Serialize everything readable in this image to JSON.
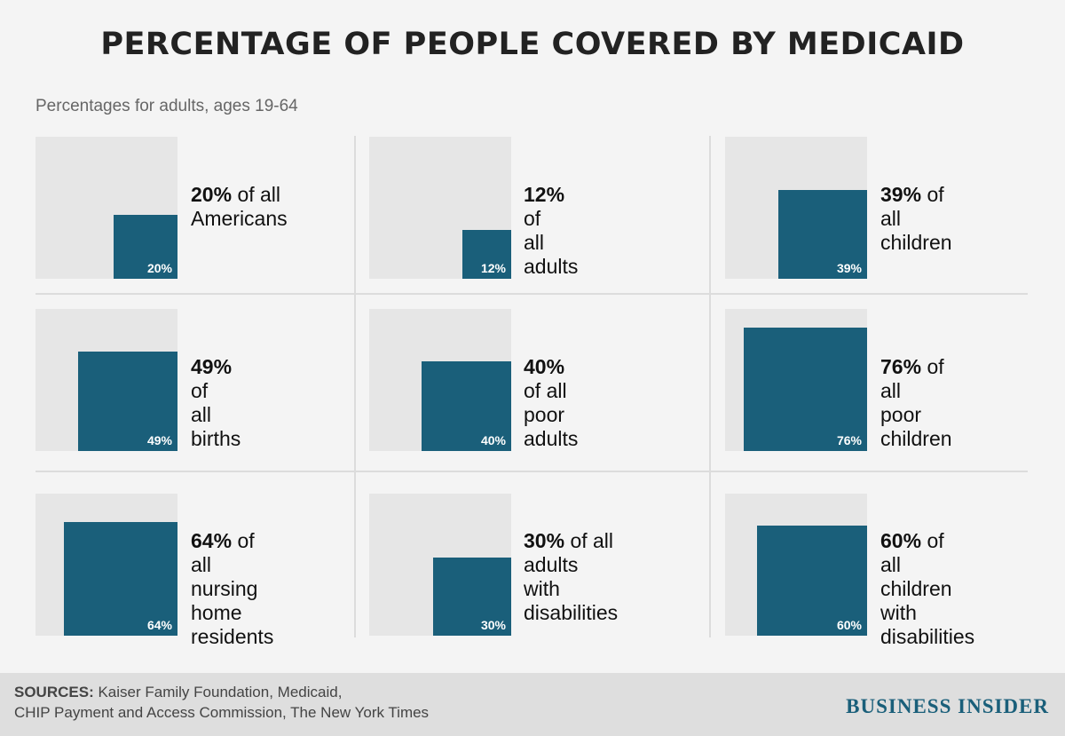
{
  "title": "PERCENTAGE OF PEOPLE COVERED BY MEDICAID",
  "subtitle": "Percentages for adults, ages 19-64",
  "colors": {
    "bar": "#1a5f7a",
    "box": "#e6e6e6",
    "background": "#f4f4f4",
    "brand": "#1a5f7a"
  },
  "chart_data": {
    "type": "bar",
    "title": "PERCENTAGE OF PEOPLE COVERED BY MEDICAID",
    "subtitle": "Percentages for adults, ages 19-64",
    "ylim": [
      0,
      100
    ],
    "panels": [
      {
        "value": 20,
        "value_label": "20%",
        "line1": "of all",
        "line2": "Americans",
        "line3": ""
      },
      {
        "value": 12,
        "value_label": "12%",
        "line1": "of",
        "line2": "all adults",
        "line3": ""
      },
      {
        "value": 39,
        "value_label": "39%",
        "line1": "of",
        "line2": "all children",
        "line3": ""
      },
      {
        "value": 49,
        "value_label": "49%",
        "line1": "of",
        "line2": "all births",
        "line3": ""
      },
      {
        "value": 40,
        "value_label": "40%",
        "line1": "of all",
        "line2": "poor adults",
        "line3": ""
      },
      {
        "value": 76,
        "value_label": "76%",
        "line1": "of all",
        "line2": "poor children",
        "line3": ""
      },
      {
        "value": 64,
        "value_label": "64%",
        "line1": "of all",
        "line2": "nursing home",
        "line3": "residents"
      },
      {
        "value": 30,
        "value_label": "30%",
        "line1": "of all adults",
        "line2": "with disabilities",
        "line3": ""
      },
      {
        "value": 60,
        "value_label": "60%",
        "line1": "of",
        "line2": "all children",
        "line3": "with disabilities"
      }
    ]
  },
  "footer": {
    "sources_lead": "SOURCES:",
    "sources_line1": "Kaiser Family Foundation, Medicaid,",
    "sources_line2": "CHIP Payment and Access Commission, The New York Times",
    "brand": "BUSINESS INSIDER"
  }
}
